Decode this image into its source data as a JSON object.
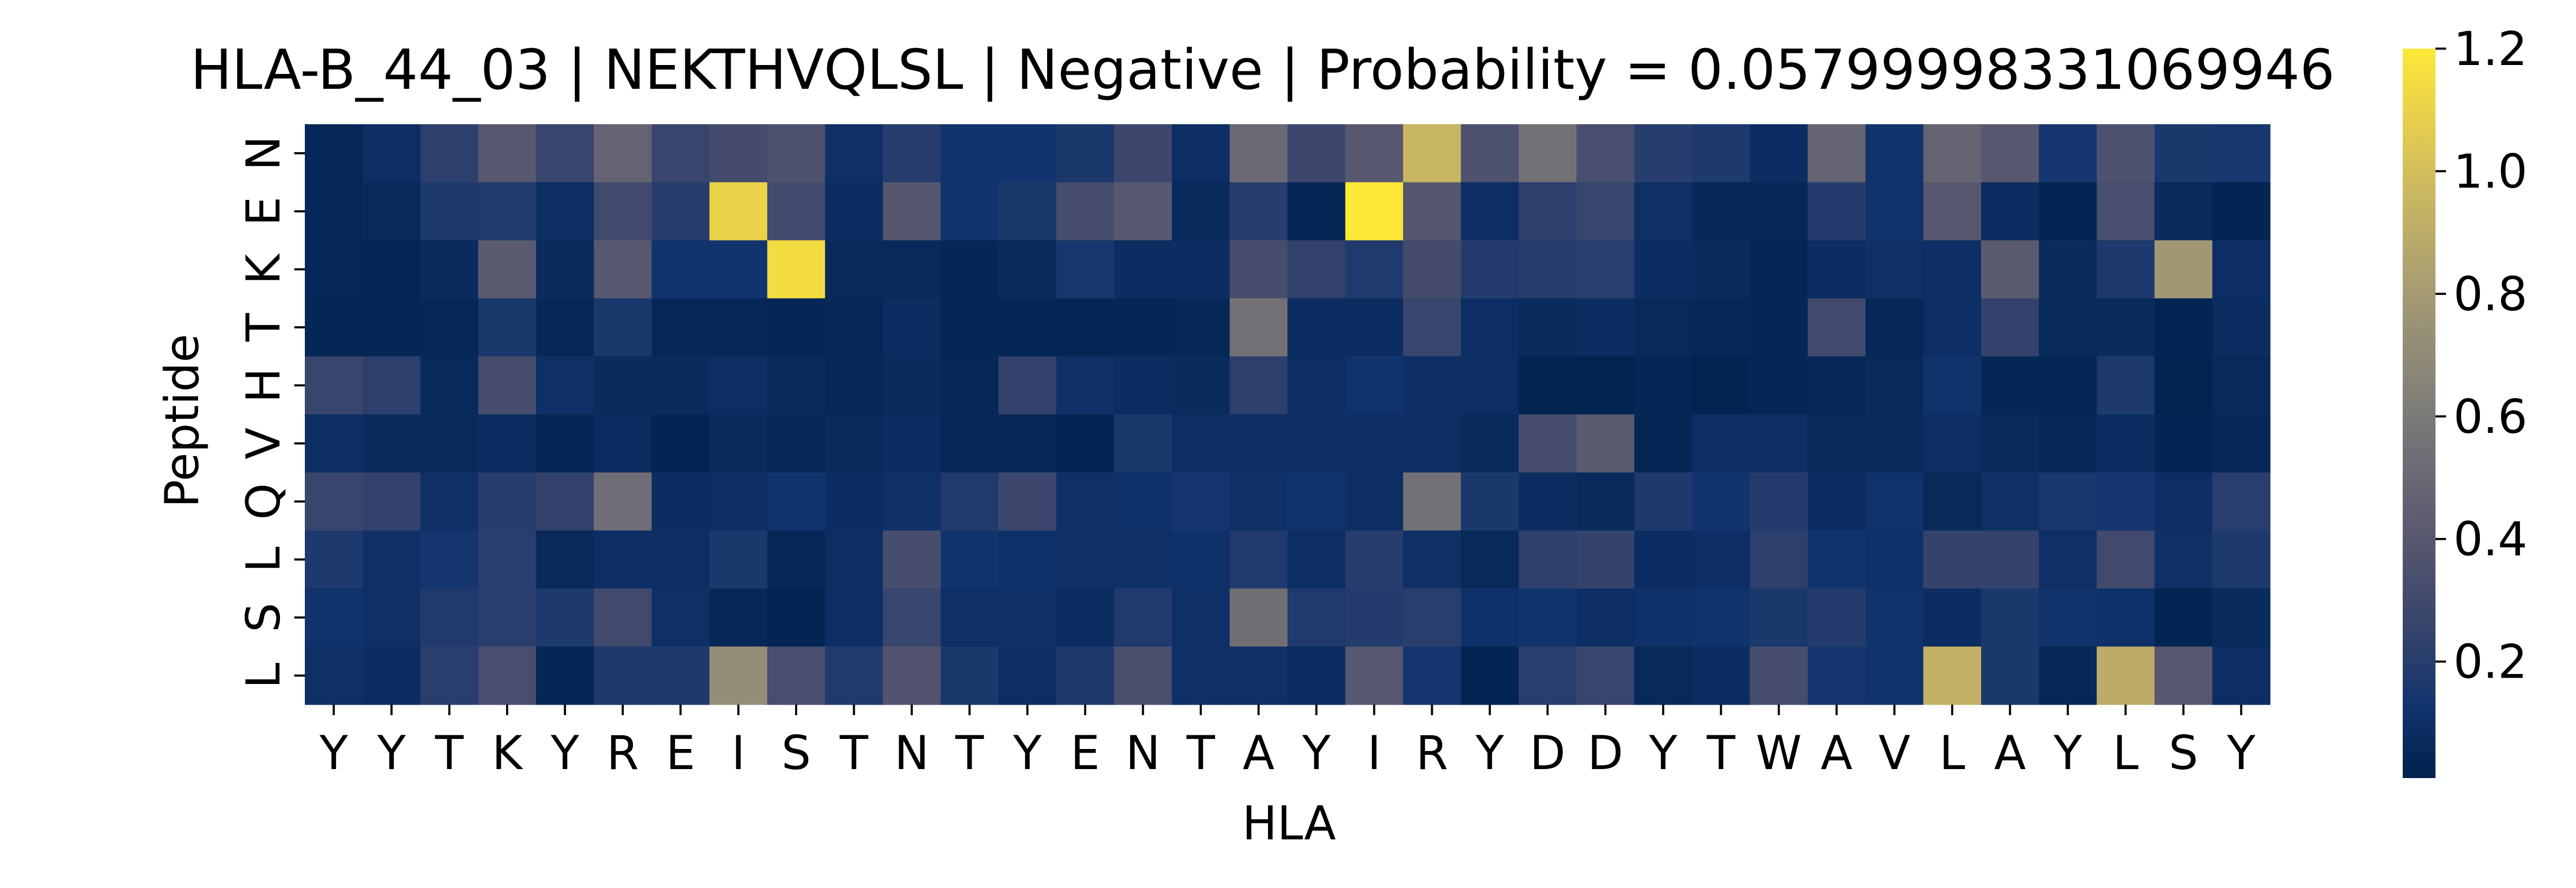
{
  "chart_data": {
    "type": "heatmap",
    "title": "HLA-B_44_03 | NEKTHVQLSL | Negative | Probability = 0.05799998331069946",
    "xlabel": "HLA",
    "ylabel": "Peptide",
    "x_tick_labels": [
      "Y",
      "Y",
      "T",
      "K",
      "Y",
      "R",
      "E",
      "I",
      "S",
      "T",
      "N",
      "T",
      "Y",
      "E",
      "N",
      "T",
      "A",
      "Y",
      "I",
      "R",
      "Y",
      "D",
      "D",
      "Y",
      "T",
      "W",
      "A",
      "V",
      "L",
      "A",
      "Y",
      "L",
      "S",
      "Y"
    ],
    "y_tick_labels": [
      "N",
      "E",
      "K",
      "T",
      "H",
      "V",
      "Q",
      "L",
      "S",
      "L"
    ],
    "colorbar": {
      "colormap": "cividis",
      "vmin": 0.01,
      "vmax": 1.2,
      "ticks": [
        "0.2",
        "0.4",
        "0.6",
        "0.8",
        "1.0",
        "1.2"
      ],
      "tick_values": [
        0.2,
        0.4,
        0.6,
        0.8,
        1.0,
        1.2
      ]
    },
    "values": [
      [
        0.05,
        0.09,
        0.22,
        0.4,
        0.26,
        0.47,
        0.26,
        0.31,
        0.36,
        0.1,
        0.2,
        0.13,
        0.13,
        0.16,
        0.28,
        0.09,
        0.5,
        0.28,
        0.4,
        0.95,
        0.36,
        0.55,
        0.33,
        0.2,
        0.17,
        0.08,
        0.48,
        0.12,
        0.47,
        0.4,
        0.14,
        0.36,
        0.16,
        0.15
      ],
      [
        0.05,
        0.06,
        0.17,
        0.18,
        0.09,
        0.3,
        0.2,
        1.1,
        0.3,
        0.08,
        0.38,
        0.13,
        0.16,
        0.32,
        0.4,
        0.06,
        0.2,
        0.04,
        1.2,
        0.38,
        0.09,
        0.22,
        0.26,
        0.1,
        0.05,
        0.05,
        0.19,
        0.12,
        0.4,
        0.08,
        0.03,
        0.33,
        0.07,
        0.03
      ],
      [
        0.05,
        0.04,
        0.07,
        0.42,
        0.07,
        0.4,
        0.13,
        0.13,
        1.15,
        0.06,
        0.06,
        0.04,
        0.07,
        0.15,
        0.08,
        0.08,
        0.32,
        0.24,
        0.18,
        0.31,
        0.19,
        0.2,
        0.21,
        0.08,
        0.07,
        0.04,
        0.08,
        0.1,
        0.09,
        0.42,
        0.07,
        0.17,
        0.78,
        0.09
      ],
      [
        0.04,
        0.04,
        0.05,
        0.16,
        0.05,
        0.16,
        0.05,
        0.05,
        0.04,
        0.05,
        0.08,
        0.04,
        0.04,
        0.04,
        0.04,
        0.05,
        0.55,
        0.08,
        0.08,
        0.26,
        0.09,
        0.07,
        0.08,
        0.06,
        0.05,
        0.04,
        0.3,
        0.05,
        0.09,
        0.24,
        0.06,
        0.07,
        0.03,
        0.08
      ],
      [
        0.26,
        0.22,
        0.06,
        0.32,
        0.1,
        0.07,
        0.07,
        0.09,
        0.06,
        0.05,
        0.07,
        0.05,
        0.24,
        0.1,
        0.08,
        0.07,
        0.22,
        0.09,
        0.12,
        0.09,
        0.09,
        0.02,
        0.02,
        0.04,
        0.02,
        0.04,
        0.05,
        0.06,
        0.12,
        0.04,
        0.04,
        0.17,
        0.02,
        0.06
      ],
      [
        0.09,
        0.07,
        0.06,
        0.08,
        0.04,
        0.08,
        0.03,
        0.07,
        0.05,
        0.06,
        0.08,
        0.05,
        0.05,
        0.03,
        0.16,
        0.09,
        0.09,
        0.09,
        0.09,
        0.09,
        0.06,
        0.32,
        0.42,
        0.04,
        0.09,
        0.09,
        0.06,
        0.06,
        0.09,
        0.06,
        0.05,
        0.08,
        0.03,
        0.05
      ],
      [
        0.26,
        0.24,
        0.1,
        0.2,
        0.24,
        0.53,
        0.08,
        0.09,
        0.13,
        0.08,
        0.1,
        0.18,
        0.28,
        0.1,
        0.11,
        0.14,
        0.1,
        0.12,
        0.09,
        0.55,
        0.16,
        0.08,
        0.06,
        0.17,
        0.13,
        0.19,
        0.08,
        0.12,
        0.06,
        0.1,
        0.15,
        0.14,
        0.09,
        0.21
      ],
      [
        0.17,
        0.1,
        0.14,
        0.21,
        0.06,
        0.09,
        0.09,
        0.16,
        0.05,
        0.09,
        0.32,
        0.13,
        0.11,
        0.1,
        0.1,
        0.11,
        0.18,
        0.09,
        0.2,
        0.1,
        0.06,
        0.22,
        0.25,
        0.08,
        0.09,
        0.22,
        0.13,
        0.11,
        0.25,
        0.25,
        0.1,
        0.3,
        0.1,
        0.17
      ],
      [
        0.12,
        0.1,
        0.18,
        0.21,
        0.17,
        0.3,
        0.1,
        0.05,
        0.03,
        0.09,
        0.26,
        0.1,
        0.1,
        0.08,
        0.18,
        0.1,
        0.54,
        0.18,
        0.19,
        0.21,
        0.11,
        0.12,
        0.09,
        0.11,
        0.12,
        0.16,
        0.19,
        0.12,
        0.08,
        0.16,
        0.12,
        0.11,
        0.03,
        0.07
      ],
      [
        0.1,
        0.08,
        0.21,
        0.33,
        0.04,
        0.17,
        0.17,
        0.72,
        0.33,
        0.18,
        0.37,
        0.16,
        0.09,
        0.17,
        0.34,
        0.1,
        0.1,
        0.08,
        0.4,
        0.14,
        0.03,
        0.21,
        0.26,
        0.06,
        0.08,
        0.32,
        0.14,
        0.13,
        0.93,
        0.16,
        0.05,
        0.9,
        0.4,
        0.09
      ]
    ]
  }
}
